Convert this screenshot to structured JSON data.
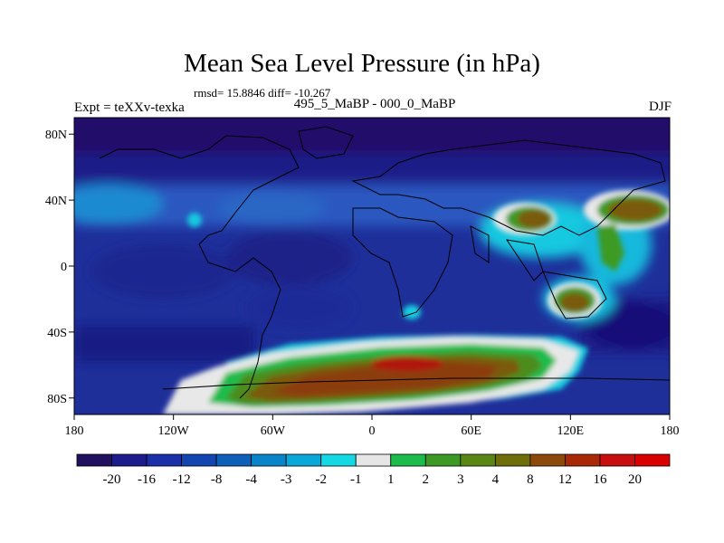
{
  "title": "Mean Sea Level Pressure (in hPa)",
  "stats_text": "rmsd= 15.8846 diff= -10.267",
  "left_label": "Expt = teXXv-texka",
  "center_label": "495_5_MaBP - 000_0_MaBP",
  "right_label": "DJF",
  "map": {
    "lon_ticks": [
      "180",
      "120W",
      "60W",
      "0",
      "60E",
      "120E",
      "180"
    ],
    "lat_ticks": [
      "80N",
      "40N",
      "0",
      "40S",
      "80S"
    ],
    "lon_values": [
      -180,
      -120,
      -60,
      0,
      60,
      120,
      180
    ],
    "lat_values": [
      80,
      40,
      0,
      -40,
      -80
    ]
  },
  "colorbar": {
    "labels": [
      "-20",
      "-16",
      "-12",
      "-8",
      "-4",
      "-3",
      "-2",
      "-1",
      "1",
      "2",
      "3",
      "4",
      "8",
      "12",
      "16",
      "20"
    ],
    "colors": [
      "#20105e",
      "#1c1c8c",
      "#1a2fa8",
      "#1245b0",
      "#0c60b8",
      "#0a84c8",
      "#0aa8d8",
      "#14d8e4",
      "#e6e6e6",
      "#1cbc4c",
      "#3c9a24",
      "#5a8614",
      "#6e6e0a",
      "#8c4a0a",
      "#a82808",
      "#c80e0e",
      "#d80000"
    ]
  },
  "colors": {
    "ocean_base": "#1e2f9a",
    "polar": "#20106a",
    "positive_anomaly": "#8c3c0a",
    "coastline": "#000000"
  }
}
